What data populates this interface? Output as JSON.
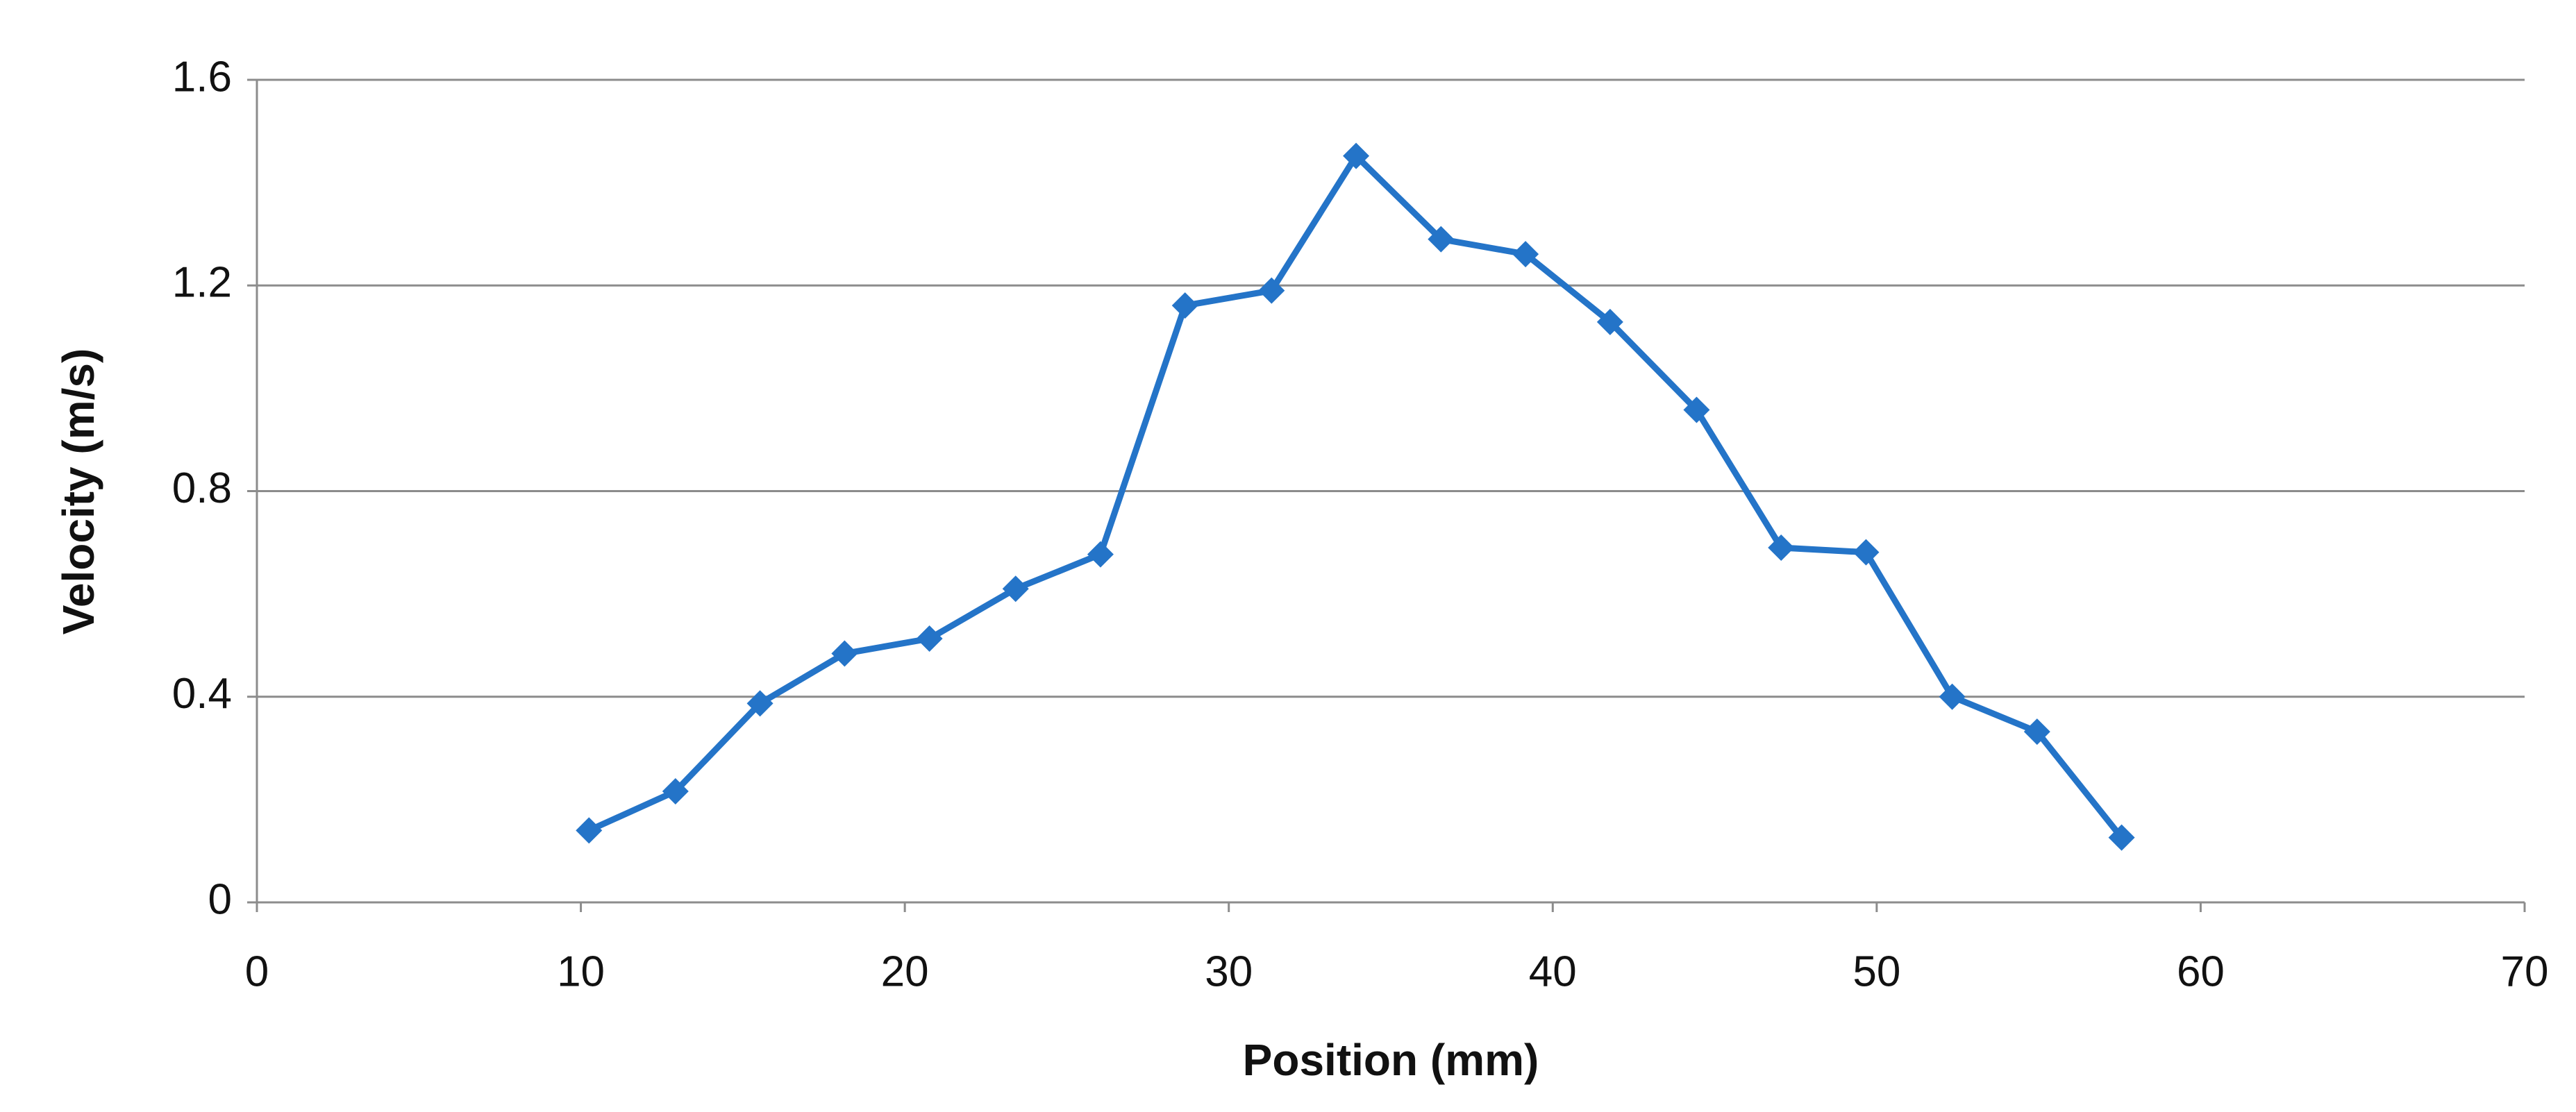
{
  "chart_data": {
    "type": "line",
    "xlabel": "Position (mm)",
    "ylabel": "Velocity (m/s)",
    "x": [
      10.25,
      12.92,
      15.53,
      18.14,
      20.76,
      23.42,
      26.04,
      28.65,
      31.32,
      33.93,
      36.55,
      39.16,
      41.77,
      44.44,
      47.05,
      49.67,
      52.33,
      54.95,
      57.56
    ],
    "series": [
      {
        "name": "Velocity",
        "color": "#2474c8",
        "values": [
          0.14,
          0.216,
          0.387,
          0.484,
          0.513,
          0.61,
          0.677,
          1.161,
          1.19,
          1.452,
          1.29,
          1.261,
          1.129,
          0.958,
          0.69,
          0.681,
          0.4,
          0.332,
          0.126
        ]
      }
    ],
    "xlim": [
      0,
      70
    ],
    "xticks": [
      0,
      10,
      20,
      30,
      40,
      50,
      60,
      70
    ],
    "ylim": [
      0,
      1.6
    ],
    "yticks": [
      0,
      0.4,
      0.8,
      1.2,
      1.6
    ],
    "grid": true
  }
}
